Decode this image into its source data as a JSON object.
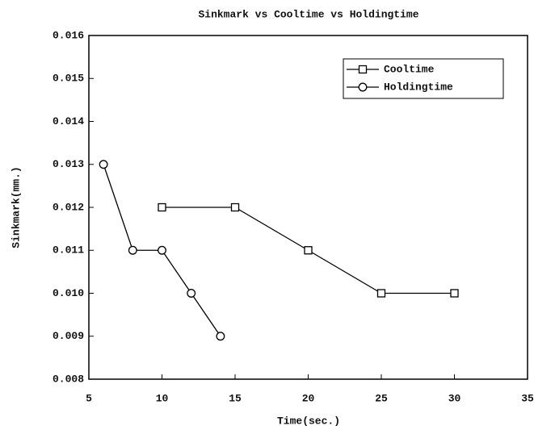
{
  "chart_data": {
    "type": "line",
    "title": "Sinkmark vs Cooltime vs Holdingtime",
    "x_label": "Time(sec.)",
    "y_label": "Sinkmark(mm.)",
    "series": [
      {
        "name": "Cooltime",
        "color": "#000000",
        "marker": "square",
        "x": [
          10,
          15,
          20,
          25,
          30
        ],
        "values": [
          0.012,
          0.012,
          0.011,
          0.01,
          0.01
        ]
      },
      {
        "name": "Holdingtime",
        "color": "#000000",
        "marker": "circle",
        "x": [
          6,
          8,
          10,
          12,
          14
        ],
        "values": [
          0.013,
          0.011,
          0.011,
          0.01,
          0.009
        ]
      }
    ],
    "xlim": [
      5,
      35
    ],
    "xticks": [
      5,
      10,
      15,
      20,
      25,
      30,
      35
    ],
    "ylim": [
      0.008,
      0.016
    ],
    "yticks": [
      0.008,
      0.009,
      {
        "value": 0.01,
        "label": "0.010"
      },
      0.011,
      0.012,
      0.013,
      0.014,
      0.015,
      0.016
    ],
    "grid": false,
    "legend": "upper right"
  }
}
